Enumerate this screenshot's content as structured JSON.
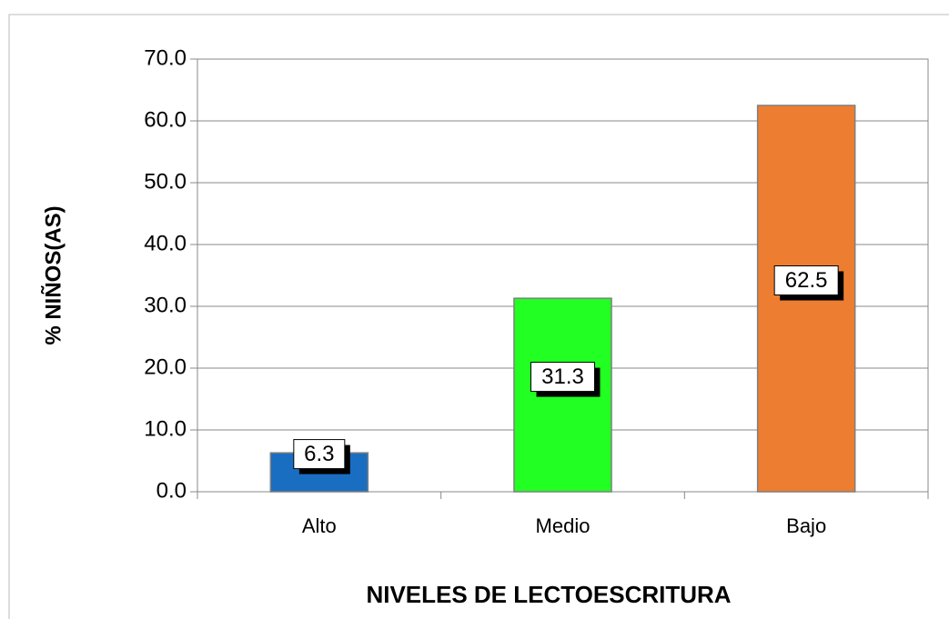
{
  "chart_data": {
    "type": "bar",
    "x_label": "NIVELES DE LECTOESCRITURA",
    "y_label": "% NIÑOS(AS)",
    "categories": [
      "Alto",
      "Medio",
      "Bajo"
    ],
    "values": [
      6.3,
      31.3,
      62.5
    ],
    "colors": [
      "#1a6ec2",
      "#22ff22",
      "#ed7d31"
    ],
    "ylim": [
      0,
      70
    ],
    "yticks": [
      {
        "value": 0,
        "label": "0.0"
      },
      {
        "value": 10,
        "label": "10.0"
      },
      {
        "value": 20,
        "label": "20.0"
      },
      {
        "value": 30,
        "label": "30.0"
      },
      {
        "value": 40,
        "label": "40.0"
      },
      {
        "value": 50,
        "label": "50.0"
      },
      {
        "value": 60,
        "label": "60.0"
      },
      {
        "value": 70,
        "label": "70.0"
      }
    ],
    "grid": true
  }
}
